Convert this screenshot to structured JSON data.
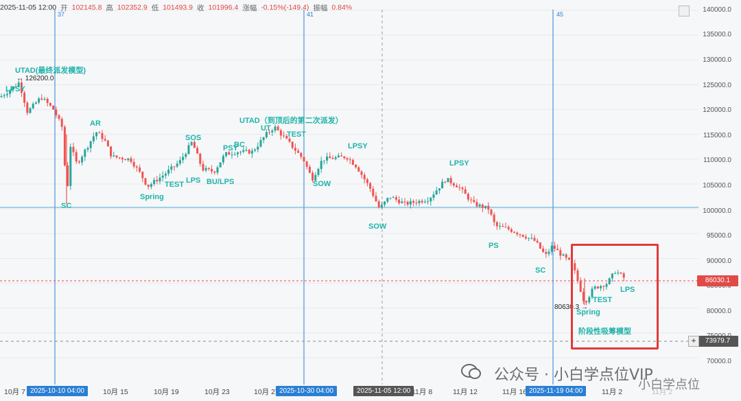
{
  "ohlc": {
    "date": "2025-11-05 12:00",
    "open_label": "开",
    "open": "102145.8",
    "high_label": "高",
    "high": "102352.9",
    "low_label": "低",
    "low": "101493.9",
    "close_label": "收",
    "close": "101996.4",
    "change_label": "涨幅",
    "change": "-0.15%(-149.4)",
    "amp_label": "振幅",
    "amp": "0.84%"
  },
  "y_axis": [
    "140000.0",
    "135000.0",
    "130000.0",
    "125000.0",
    "120000.0",
    "115000.0",
    "110000.0",
    "105000.0",
    "100000.0",
    "95000.0",
    "90000.0",
    "85000.0",
    "80000.0",
    "75000.0",
    "70000.0"
  ],
  "price_tags": {
    "current": "86030.1",
    "cursor": "73979.7"
  },
  "x_axis": {
    "labels": [
      "10月 7",
      "10月 15",
      "10月 19",
      "10月 23",
      "10月 27",
      "11月 8",
      "11月 12",
      "11月 16",
      "11月 2",
      "11月 2"
    ],
    "highlight_boxes": [
      "2025-10-10 04:00",
      "2025-10-30 04:00",
      "2025-11-05 12:00",
      "2025-11-19 04:00"
    ]
  },
  "vline_numbers": [
    "37",
    "41",
    "45"
  ],
  "annotations": {
    "utad": "UTAD(最终派发模型)",
    "high_price": "← 126200.0",
    "lpsy_top": "LPSY",
    "sc1": "SC",
    "ar": "AR",
    "spring1": "Spring",
    "test1": "TEST",
    "sos": "SOS",
    "lps1": "LPS",
    "bulps": "BU/LPS",
    "psy": "PSY",
    "bc": "BC",
    "utad2": "UTAD（到顶后的第二次派发）",
    "ut": "UT",
    "test2": "TEST",
    "sow1": "SOW",
    "lpsy2": "LPSY",
    "sow2": "SOW",
    "lpsy3": "LPSY",
    "ps": "PS",
    "sc2": "SC",
    "low_price": "80630.3 →",
    "spring2": "Spring",
    "test3": "TEST",
    "lps2": "LPS",
    "accum": "阶段性吸筹模型"
  },
  "watermark": {
    "main": "公众号 · 小白学点位VIP",
    "corner": "小白学点位"
  },
  "colors": {
    "up": "#26a69a",
    "down": "#ef5350",
    "accent": "#2a7fd4",
    "teal": "#1fb3a8",
    "box": "#e23a3a"
  }
}
